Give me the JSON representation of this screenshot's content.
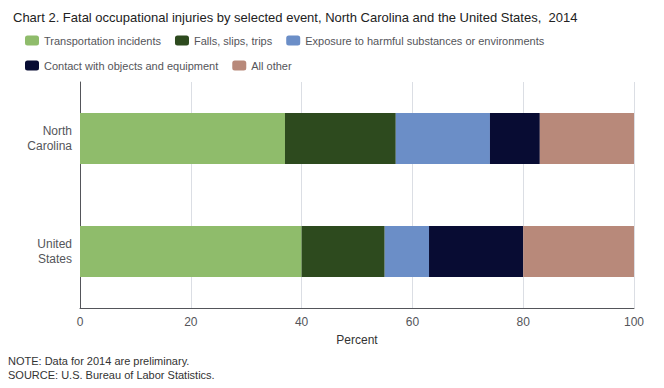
{
  "chart_data": {
    "type": "bar",
    "orientation": "horizontal",
    "stacked": true,
    "title": "Chart 2. Fatal occupational injuries by selected event, North Carolina and the United States,  2014",
    "categories": [
      "North\nCarolina",
      "United\nStates"
    ],
    "series": [
      {
        "name": "Transportation incidents",
        "color": "#8fbc6b",
        "values": [
          37,
          40
        ]
      },
      {
        "name": "Falls, slips, trips",
        "color": "#2d4a1e",
        "values": [
          20,
          15
        ]
      },
      {
        "name": "Exposure to harmful substances or environments",
        "color": "#6b8ec7",
        "values": [
          17,
          8
        ]
      },
      {
        "name": "Contact with objects and equipment",
        "color": "#080c33",
        "values": [
          9,
          17
        ]
      },
      {
        "name": "All other",
        "color": "#b8897a",
        "values": [
          17,
          20
        ]
      }
    ],
    "xlabel": "Percent",
    "xlim": [
      0,
      100
    ],
    "xticks": [
      0,
      20,
      40,
      60,
      80,
      100
    ],
    "grid": true,
    "legend": "top",
    "annotations": [
      "NOTE: Data for 2014 are preliminary.\nSOURCE: U.S. Bureau of Labor Statistics."
    ]
  }
}
